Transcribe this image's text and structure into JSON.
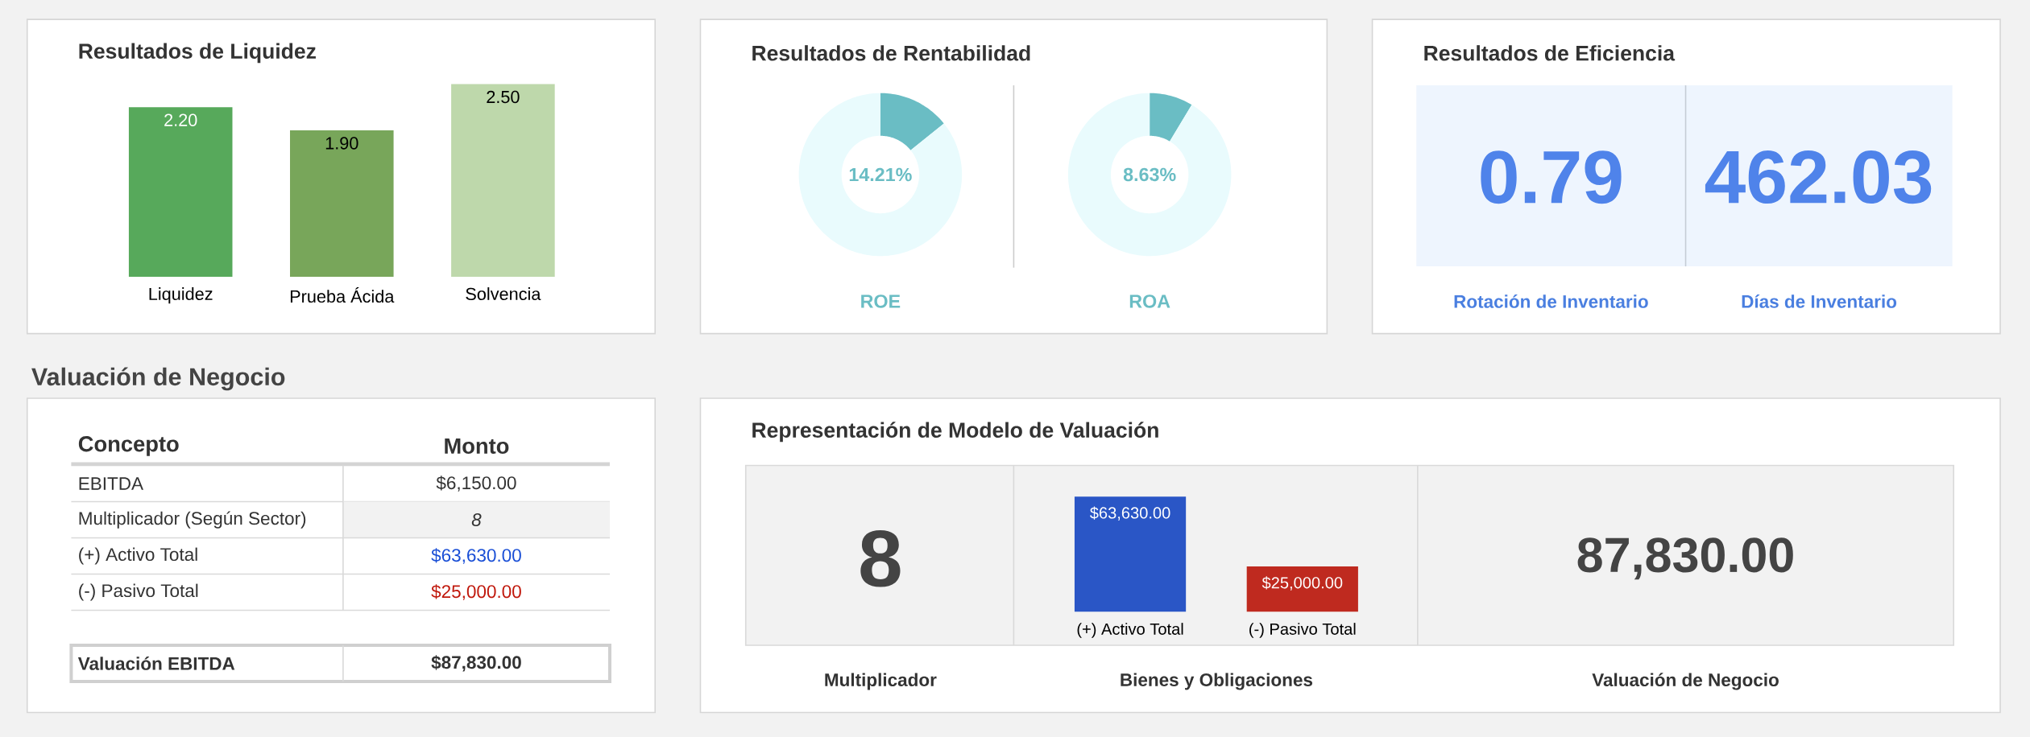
{
  "chart_data": [
    {
      "type": "bar",
      "title": "Resultados de Liquidez",
      "categories": [
        "Liquidez",
        "Prueba Ácida",
        "Solvencia"
      ],
      "values": [
        2.2,
        1.9,
        2.5
      ],
      "value_labels": [
        "2.20",
        "1.90",
        "2.50"
      ],
      "colors": [
        "#57a95b",
        "#78a65a",
        "#bed8ab"
      ]
    },
    {
      "type": "donut",
      "title": "Resultados de Rentabilidad",
      "categories": [
        null,
        null
      ],
      "values": [
        14.21,
        85.79
      ],
      "colors": [
        "#6abdc4",
        "#e9fbfd"
      ],
      "annotations": [
        "14.21%"
      ],
      "xlabel": "ROE"
    },
    {
      "type": "donut",
      "categories": [
        null,
        null
      ],
      "values": [
        8.63,
        91.37
      ],
      "colors": [
        "#6abdc4",
        "#e9fbfd"
      ],
      "annotations": [
        "8.63%"
      ],
      "xlabel": "ROA"
    },
    {
      "type": "other",
      "title": "Resultados de Eficiencia",
      "categories": [
        "Rotación de Inventario",
        "Días de Inventario"
      ],
      "values": [
        0.79,
        462.03
      ],
      "data_labels": true
    },
    {
      "type": "other",
      "title": "Valuación de Negocio",
      "annotations": [
        "Concepto",
        "Monto"
      ],
      "categories": [
        "EBITDA",
        "Multiplicador (Según Sector)",
        "(+) Activo Total",
        "(-) Pasivo Total",
        "Valuación EBITDA"
      ],
      "value_labels": [
        "$6,150.00",
        "8",
        "$63,630.00",
        "$25,000.00",
        "$87,830.00"
      ]
    },
    {
      "type": "other",
      "title": "Representación de Modelo de Valuación",
      "categories": [
        "Multiplicador"
      ],
      "values": [
        8
      ],
      "data_labels": true
    },
    {
      "type": "bar",
      "categories": [
        "(+) Activo Total",
        "(-) Pasivo Total"
      ],
      "values": [
        63630,
        25000
      ],
      "value_labels": [
        "$63,630.00",
        "$25,000.00"
      ],
      "colors": [
        "#2a56c6",
        "#bf2a1f"
      ],
      "xlabel": "Bienes y Obligaciones"
    },
    {
      "type": "other",
      "categories": [
        "Valuación de Negocio"
      ],
      "value_labels": [
        "87,830.00"
      ]
    }
  ]
}
